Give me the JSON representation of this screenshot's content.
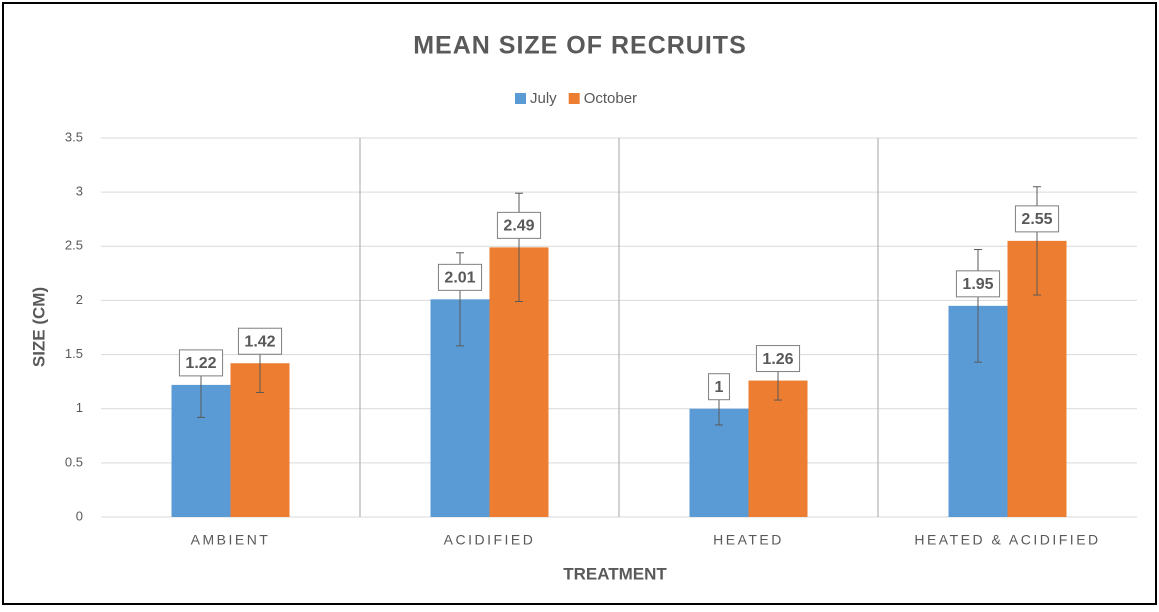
{
  "chart_data": {
    "type": "bar",
    "title": "MEAN SIZE OF RECRUITS",
    "x_label": "TREATMENT",
    "y_label": "SIZE (CM)",
    "categories": [
      "AMBIENT",
      "ACIDIFIED",
      "HEATED",
      "HEATED & ACIDIFIED"
    ],
    "series": [
      {
        "name": "July",
        "color": "#5b9bd5",
        "values": [
          1.22,
          2.01,
          1,
          1.95
        ],
        "errors": [
          0.3,
          0.43,
          0.15,
          0.52
        ]
      },
      {
        "name": "October",
        "color": "#ed7d31",
        "values": [
          1.42,
          2.49,
          1.26,
          2.55
        ],
        "errors": [
          0.27,
          0.5,
          0.18,
          0.5
        ]
      }
    ],
    "ylim": [
      0,
      3.5
    ],
    "yticks": [
      0,
      0.5,
      1,
      1.5,
      2,
      2.5,
      3,
      3.5
    ],
    "grid": true,
    "legend": "top"
  }
}
